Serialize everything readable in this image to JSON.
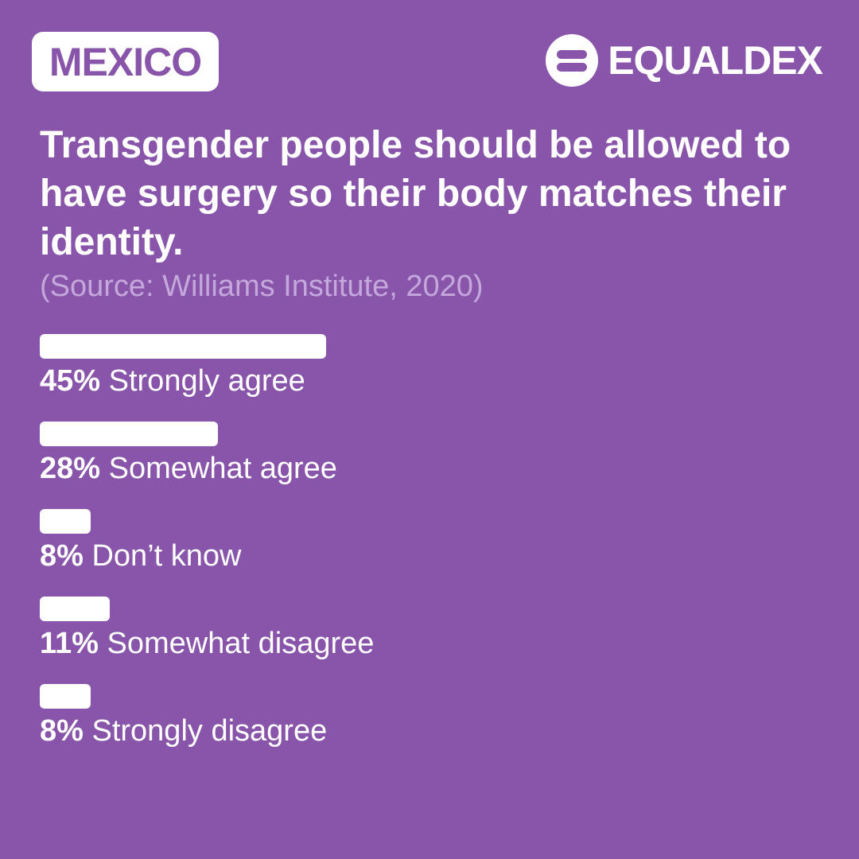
{
  "header": {
    "country": "MEXICO",
    "brand": "EQUALDEX",
    "brand_icon": "equaldex-logo-icon"
  },
  "colors": {
    "background": "#8855aa",
    "bar": "#ffffff",
    "source_text": "#c4a8db"
  },
  "question": "Transgender people should be allowed to have surgery so their body matches their identity.",
  "source": "(Source: Williams Institute, 2020)",
  "chart_data": {
    "type": "bar",
    "orientation": "horizontal",
    "title": "Transgender people should be allowed to have surgery so their body matches their identity.",
    "categories": [
      "Strongly agree",
      "Somewhat agree",
      "Don’t know",
      "Somewhat disagree",
      "Strongly disagree"
    ],
    "values": [
      45,
      28,
      8,
      11,
      8
    ],
    "value_labels": [
      "45%",
      "28%",
      "8%",
      "11%",
      "8%"
    ],
    "unit": "%",
    "xlim": [
      0,
      100
    ]
  }
}
